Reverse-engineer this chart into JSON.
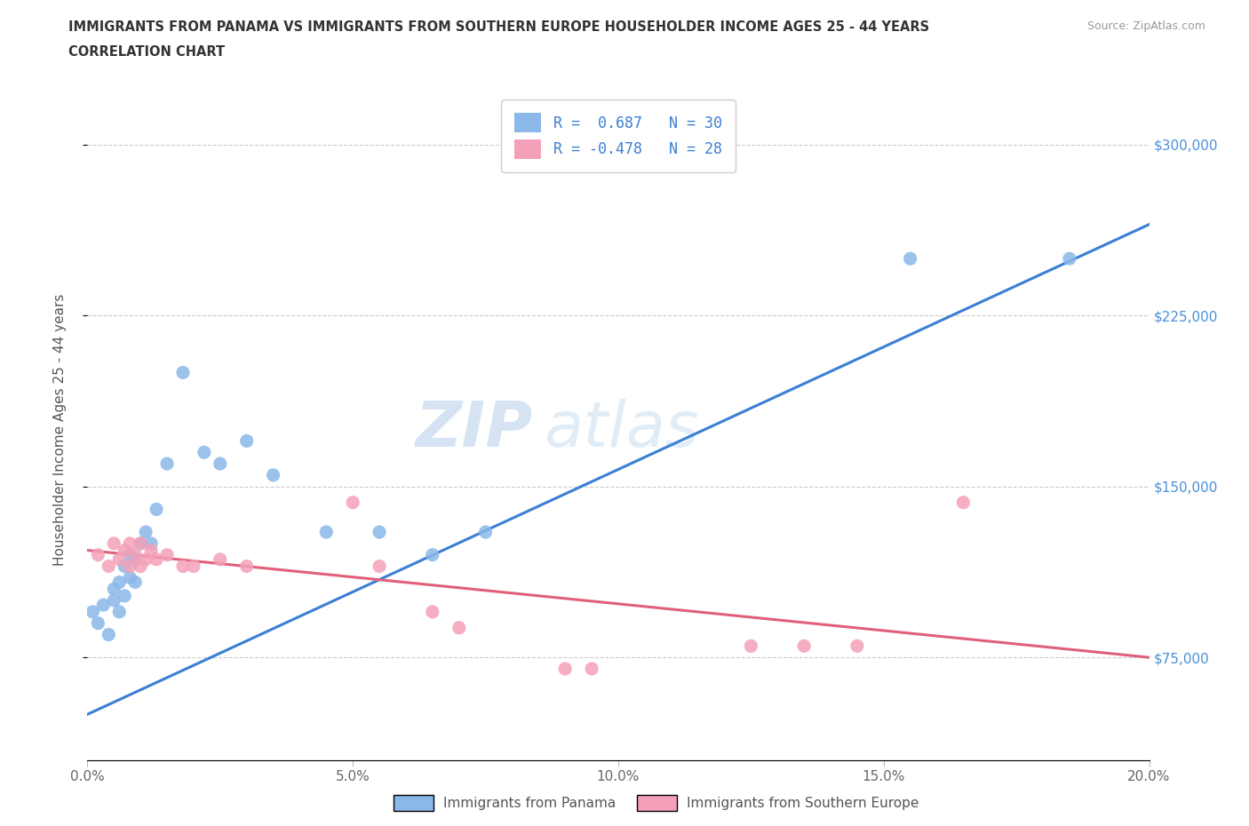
{
  "title_line1": "IMMIGRANTS FROM PANAMA VS IMMIGRANTS FROM SOUTHERN EUROPE HOUSEHOLDER INCOME AGES 25 - 44 YEARS",
  "title_line2": "CORRELATION CHART",
  "source_text": "Source: ZipAtlas.com",
  "ylabel": "Householder Income Ages 25 - 44 years",
  "xlim": [
    0.0,
    0.2
  ],
  "ylim": [
    30000,
    320000
  ],
  "xtick_labels": [
    "0.0%",
    "5.0%",
    "10.0%",
    "15.0%",
    "20.0%"
  ],
  "xtick_values": [
    0.0,
    0.05,
    0.1,
    0.15,
    0.2
  ],
  "ytick_values": [
    75000,
    150000,
    225000,
    300000
  ],
  "ytick_labels": [
    "$75,000",
    "$150,000",
    "$225,000",
    "$300,000"
  ],
  "r_panama": 0.687,
  "n_panama": 30,
  "r_southern_europe": -0.478,
  "n_southern_europe": 28,
  "color_panama": "#8ab8e8",
  "color_southern_europe": "#f4a0b8",
  "color_panama_line": "#3a7fd5",
  "color_southern_europe_line": "#e0607a",
  "watermark_zip": "ZIP",
  "watermark_atlas": "atlas",
  "panama_x": [
    0.001,
    0.002,
    0.003,
    0.004,
    0.005,
    0.005,
    0.006,
    0.006,
    0.007,
    0.007,
    0.008,
    0.008,
    0.009,
    0.009,
    0.01,
    0.011,
    0.012,
    0.013,
    0.015,
    0.018,
    0.022,
    0.025,
    0.03,
    0.035,
    0.045,
    0.055,
    0.065,
    0.075,
    0.155,
    0.185
  ],
  "panama_y": [
    95000,
    90000,
    98000,
    85000,
    100000,
    105000,
    95000,
    108000,
    102000,
    115000,
    110000,
    120000,
    108000,
    118000,
    125000,
    130000,
    125000,
    140000,
    160000,
    200000,
    165000,
    160000,
    170000,
    155000,
    130000,
    130000,
    120000,
    130000,
    250000,
    250000
  ],
  "southern_europe_x": [
    0.002,
    0.004,
    0.005,
    0.006,
    0.007,
    0.008,
    0.008,
    0.009,
    0.01,
    0.01,
    0.011,
    0.012,
    0.013,
    0.015,
    0.018,
    0.02,
    0.025,
    0.03,
    0.05,
    0.055,
    0.065,
    0.07,
    0.09,
    0.095,
    0.125,
    0.135,
    0.145,
    0.165
  ],
  "southern_europe_y": [
    120000,
    115000,
    125000,
    118000,
    122000,
    115000,
    125000,
    120000,
    115000,
    125000,
    118000,
    122000,
    118000,
    120000,
    115000,
    115000,
    118000,
    115000,
    143000,
    115000,
    95000,
    88000,
    70000,
    70000,
    80000,
    80000,
    80000,
    143000
  ]
}
